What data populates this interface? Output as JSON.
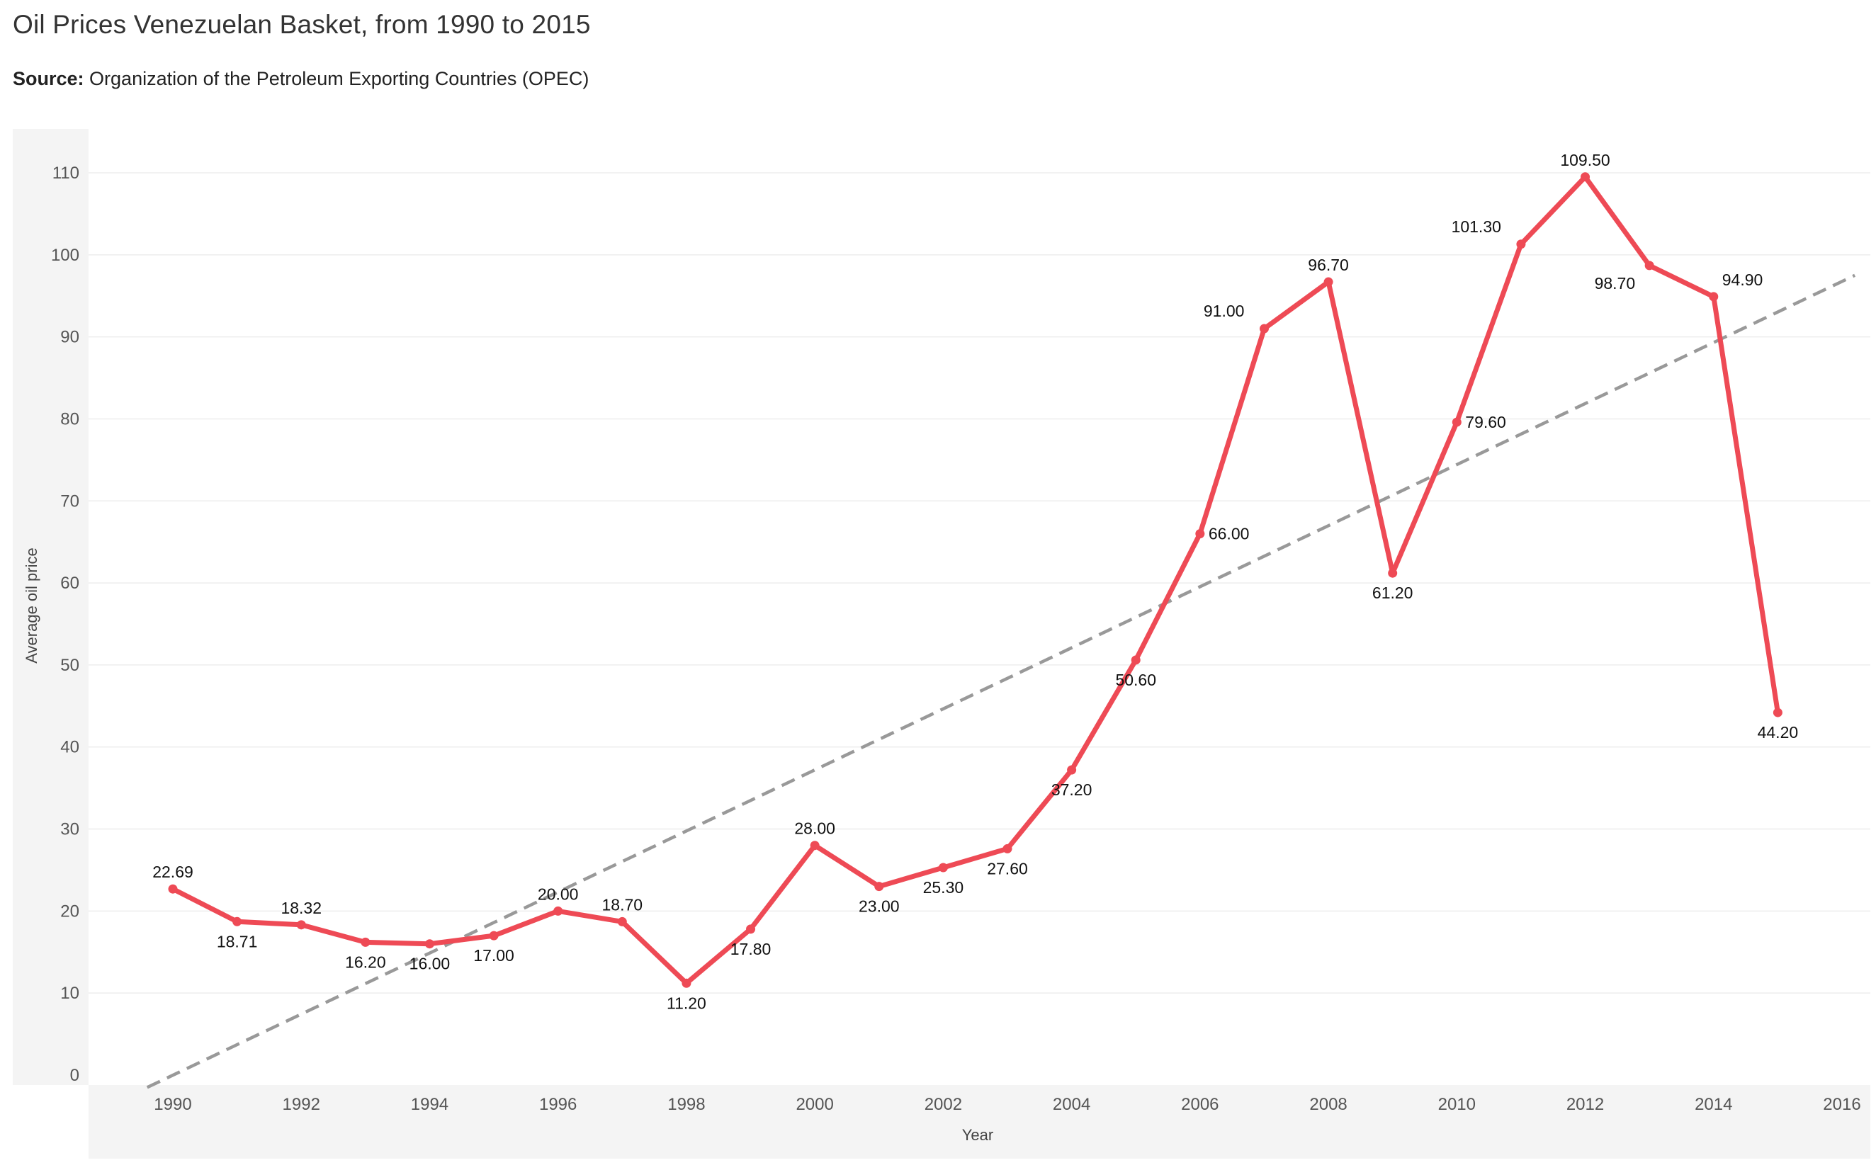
{
  "header": {
    "title": "Oil Prices Venezuelan Basket, from 1990 to 2015",
    "source_label": "Source:",
    "source_text": "Organization of the Petroleum Exporting Countries (OPEC)"
  },
  "colors": {
    "series": "#EE4A55",
    "trend": "#999999",
    "axis_band": "#F4F4F4",
    "gridline": "#EDEDED"
  },
  "chart_data": {
    "type": "line",
    "title": "Oil Prices Venezuelan Basket, from 1990 to 2015",
    "xlabel": "Year",
    "ylabel": "Average oil price",
    "xlim": [
      1989.5,
      2016.2
    ],
    "ylim": [
      0,
      110
    ],
    "x_ticks": [
      1990,
      1992,
      1994,
      1996,
      1998,
      2000,
      2002,
      2004,
      2006,
      2008,
      2010,
      2012,
      2014,
      2016
    ],
    "y_ticks": [
      0,
      10,
      20,
      30,
      40,
      50,
      60,
      70,
      80,
      90,
      100,
      110
    ],
    "grid": "horizontal",
    "series": [
      {
        "x": [
          1990,
          1991,
          1992,
          1993,
          1994,
          1995,
          1996,
          1997,
          1998,
          1999,
          2000,
          2001,
          2002,
          2003,
          2004,
          2005,
          2006,
          2007,
          2008,
          2009,
          2010,
          2011,
          2012,
          2013,
          2014,
          2015
        ],
        "values": [
          22.69,
          18.71,
          18.32,
          16.2,
          16.0,
          17.0,
          20.0,
          18.7,
          11.2,
          17.8,
          28.0,
          23.0,
          25.3,
          27.6,
          37.2,
          50.6,
          66.0,
          91.0,
          96.7,
          61.2,
          79.6,
          101.3,
          109.5,
          98.7,
          94.9,
          44.2
        ],
        "labels": [
          "22.69",
          "18.71",
          "18.32",
          "16.20",
          "16.00",
          "17.00",
          "20.00",
          "18.70",
          "11.20",
          "17.80",
          "28.00",
          "23.00",
          "25.30",
          "27.60",
          "37.20",
          "50.60",
          "66.00",
          "91.00",
          "96.70",
          "61.20",
          "79.60",
          "101.30",
          "109.50",
          "98.70",
          "94.90",
          "44.20"
        ],
        "label_positions": [
          "above",
          "below",
          "above",
          "below",
          "below",
          "below",
          "above",
          "above",
          "below",
          "below",
          "above",
          "below",
          "below",
          "below",
          "below",
          "below",
          "right",
          "above-left",
          "above",
          "below",
          "right",
          "above-left",
          "above",
          "below-left",
          "above-right",
          "below"
        ],
        "color": "#EE4A55"
      }
    ],
    "trend_line": {
      "style": "dashed",
      "x": [
        1989.6,
        2016.2
      ],
      "values": [
        -1.5,
        97.5
      ],
      "color": "#999999"
    }
  }
}
